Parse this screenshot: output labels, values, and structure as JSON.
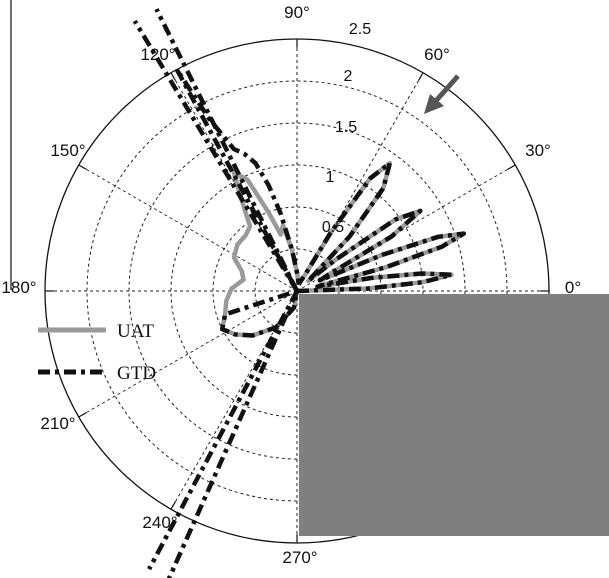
{
  "chart_data": {
    "type": "polar_line",
    "angle_unit": "degrees",
    "angle_ticks": [
      {
        "angle": 0,
        "label": "0°"
      },
      {
        "angle": 30,
        "label": "30°"
      },
      {
        "angle": 60,
        "label": "60°"
      },
      {
        "angle": 90,
        "label": "90°"
      },
      {
        "angle": 120,
        "label": "120°"
      },
      {
        "angle": 150,
        "label": "150°"
      },
      {
        "angle": 180,
        "label": "180°"
      },
      {
        "angle": 210,
        "label": "210°"
      },
      {
        "angle": 240,
        "label": "240°"
      },
      {
        "angle": 270,
        "label": "270°"
      }
    ],
    "radial_ticks": [
      0.5,
      1,
      1.5,
      2,
      2.5
    ],
    "radial_tick_labels": [
      "0.5",
      "1",
      "1.5",
      "2",
      "2.5"
    ],
    "rlim": [
      0,
      3
    ],
    "grid": true,
    "legend_position": "left",
    "annotation": "arrow pointing toward the main lobe near 55°",
    "series": [
      {
        "name": "UAT",
        "style": "solid",
        "color": "#9a9a9a",
        "points": [
          [
            0,
            0
          ],
          [
            2,
            0.85
          ],
          [
            4,
            1.5
          ],
          [
            6,
            1.85
          ],
          [
            8,
            1.5
          ],
          [
            10,
            0.9
          ],
          [
            12,
            0.25
          ],
          [
            13,
            0.3
          ],
          [
            15,
            1.1
          ],
          [
            17,
            1.8
          ],
          [
            19,
            2.1
          ],
          [
            21,
            1.8
          ],
          [
            23,
            1.1
          ],
          [
            25,
            0.3
          ],
          [
            27,
            0.4
          ],
          [
            30,
            1.3
          ],
          [
            33,
            1.75
          ],
          [
            36,
            1.45
          ],
          [
            39,
            0.6
          ],
          [
            42,
            0.18
          ],
          [
            46,
            0.9
          ],
          [
            50,
            1.6
          ],
          [
            54,
            1.88
          ],
          [
            57,
            1.6
          ],
          [
            60,
            0.8
          ],
          [
            64,
            0.2
          ],
          [
            70,
            0.12
          ],
          [
            80,
            0.1
          ],
          [
            90,
            0.22
          ],
          [
            97,
            0.5
          ],
          [
            102,
            0.8
          ],
          [
            106,
            0.7
          ],
          [
            110,
            1.0
          ],
          [
            114,
            1.45
          ],
          [
            118,
            1.6
          ],
          [
            121,
            1.3
          ],
          [
            126,
            0.95
          ],
          [
            133,
            0.9
          ],
          [
            142,
            0.9
          ],
          [
            152,
            0.85
          ],
          [
            160,
            0.7
          ],
          [
            168,
            0.65
          ],
          [
            178,
            0.78
          ],
          [
            188,
            0.85
          ],
          [
            198,
            0.9
          ],
          [
            207,
            1.0
          ],
          [
            215,
            0.9
          ],
          [
            225,
            0.75
          ],
          [
            240,
            0.5
          ],
          [
            260,
            0.2
          ],
          [
            270,
            0
          ]
        ]
      },
      {
        "name": "GTD",
        "style": "dash-dot",
        "color": "#111111",
        "points": [
          [
            0,
            0
          ],
          [
            2,
            0.85
          ],
          [
            4,
            1.5
          ],
          [
            6,
            1.85
          ],
          [
            8,
            1.5
          ],
          [
            10,
            0.9
          ],
          [
            12,
            0.25
          ],
          [
            13,
            0.3
          ],
          [
            15,
            1.1
          ],
          [
            17,
            1.8
          ],
          [
            19,
            2.1
          ],
          [
            21,
            1.8
          ],
          [
            23,
            1.1
          ],
          [
            25,
            0.3
          ],
          [
            27,
            0.4
          ],
          [
            30,
            1.3
          ],
          [
            33,
            1.75
          ],
          [
            36,
            1.45
          ],
          [
            39,
            0.6
          ],
          [
            42,
            0.18
          ],
          [
            46,
            0.9
          ],
          [
            50,
            1.6
          ],
          [
            54,
            1.88
          ],
          [
            57,
            1.6
          ],
          [
            60,
            0.8
          ],
          [
            64,
            0.2
          ],
          [
            70,
            0.12
          ],
          [
            80,
            0.1
          ],
          [
            90,
            0.22
          ],
          [
            97,
            0.5
          ],
          [
            102,
            0.95
          ],
          [
            105,
            1.3
          ],
          [
            108,
            1.6
          ],
          [
            111,
            1.75
          ],
          [
            114,
            1.85
          ],
          [
            117,
            2.3
          ],
          [
            118.5,
            3.0
          ],
          [
            180,
            0
          ],
          [
            198,
            0.9
          ],
          [
            207,
            1.0
          ],
          [
            215,
            0.9
          ],
          [
            225,
            0.75
          ],
          [
            240,
            0.5
          ],
          [
            260,
            0.2
          ],
          [
            270,
            0
          ]
        ]
      }
    ],
    "extra_lines": [
      {
        "series": "GTD",
        "angle": 116.5,
        "from": 0,
        "to": 3.0
      },
      {
        "series": "GTD",
        "angle": 121.0,
        "from": 0,
        "to": 3.0
      },
      {
        "series": "GTD",
        "angle": 242.0,
        "from": 0,
        "to": 3.0
      },
      {
        "series": "GTD",
        "angle": 246.0,
        "from": 0,
        "to": 3.0
      }
    ]
  },
  "legend": {
    "uat_label": "UAT",
    "gtd_label": "GTD"
  },
  "overlay": {
    "fill_color": "#7f7f7f"
  }
}
